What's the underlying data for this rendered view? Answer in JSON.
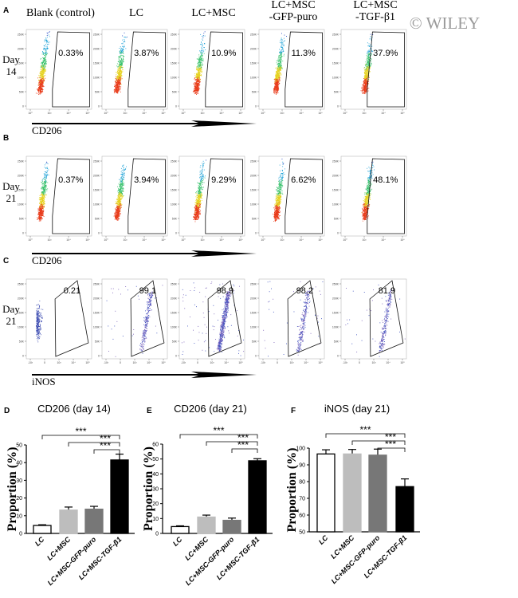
{
  "watermark": "© WILEY",
  "column_headers": [
    [
      "Blank (control)"
    ],
    [
      "LC"
    ],
    [
      "LC+MSC"
    ],
    [
      "LC+MSC",
      "-GFP-puro"
    ],
    [
      "LC+MSC",
      "-TGF-β1"
    ]
  ],
  "flow_rows": [
    {
      "letter": "A",
      "day": [
        "Day",
        "14"
      ],
      "marker": "CD206",
      "gate": "rect",
      "values": [
        "0.33%",
        "3.87%",
        "10.9%",
        "11.3%",
        "37.9%"
      ],
      "y_ticks": [
        "0",
        "50K",
        "100K",
        "150K",
        "200K",
        "250K"
      ],
      "x_ticks": [
        "10⁰",
        "10²",
        "10⁴",
        "10⁶"
      ]
    },
    {
      "letter": "B",
      "day": [
        "Day",
        "21"
      ],
      "marker": "CD206",
      "gate": "rect",
      "values": [
        "0.37%",
        "3.94%",
        "9.29%",
        "6.62%",
        "48.1%"
      ],
      "y_ticks": [
        "0",
        "50K",
        "100K",
        "150K",
        "200K",
        "250K"
      ],
      "x_ticks": [
        "10⁰",
        "10²",
        "10⁴",
        "10⁶"
      ]
    },
    {
      "letter": "C",
      "day": [
        "Day",
        "21"
      ],
      "marker": "iNOS",
      "gate": "poly",
      "values": [
        "0.21",
        "99.1",
        "98.9",
        "98.2",
        "81.9"
      ],
      "y_ticks": [
        "0",
        "50K",
        "100K",
        "150K",
        "200K",
        "250K"
      ],
      "x_ticks": [
        "-10³",
        "0",
        "10³",
        "10⁴",
        "10⁵"
      ]
    }
  ],
  "chart_data": [
    {
      "letter": "D",
      "type": "bar",
      "title": "CD206 (day 14)",
      "ylabel": "Proportion (%)",
      "ylim": [
        0,
        50
      ],
      "yticks": [
        0,
        10,
        20,
        30,
        40,
        50
      ],
      "categories": [
        "LC",
        "LC+MSC",
        "LC+MSC-GFP-puro",
        "LC+MSC-TGF-β1"
      ],
      "values": [
        4.5,
        13.2,
        13.7,
        41.5
      ],
      "errors": [
        0.4,
        1.7,
        1.6,
        3.3
      ],
      "colors": [
        "#ffffff",
        "#bdbdbd",
        "#777777",
        "#000000"
      ],
      "significance": [
        {
          "from": 0,
          "to": 3,
          "label": "***"
        },
        {
          "from": 1,
          "to": 3,
          "label": "***"
        },
        {
          "from": 2,
          "to": 3,
          "label": "***"
        }
      ]
    },
    {
      "letter": "E",
      "type": "bar",
      "title": "CD206 (day 21)",
      "ylabel": "Proportion (%)",
      "ylim": [
        0,
        60
      ],
      "yticks": [
        0,
        10,
        20,
        30,
        40,
        50,
        60
      ],
      "categories": [
        "LC",
        "LC+MSC",
        "LC+MSC-GFP-puro",
        "LC+MSC-TGF-β1"
      ],
      "values": [
        4.6,
        11.0,
        8.8,
        48.8
      ],
      "errors": [
        0.5,
        1.3,
        1.5,
        1.4
      ],
      "colors": [
        "#ffffff",
        "#bdbdbd",
        "#777777",
        "#000000"
      ],
      "significance": [
        {
          "from": 0,
          "to": 3,
          "label": "***"
        },
        {
          "from": 1,
          "to": 3,
          "label": "***"
        },
        {
          "from": 2,
          "to": 3,
          "label": "***"
        }
      ]
    },
    {
      "letter": "F",
      "type": "bar",
      "title": "iNOS (day 21)",
      "ylabel": "Proportion (%)",
      "ylim": [
        50,
        100
      ],
      "yticks": [
        50,
        60,
        70,
        80,
        90,
        100
      ],
      "categories": [
        "LC",
        "LC+MSC",
        "LC+MSC-GFP-puro",
        "LC+MSC-TGF-β1"
      ],
      "values": [
        96.5,
        96.5,
        95.8,
        77.0
      ],
      "errors": [
        2.5,
        2.7,
        3.6,
        4.6
      ],
      "colors": [
        "#ffffff",
        "#bdbdbd",
        "#777777",
        "#000000"
      ],
      "significance": [
        {
          "from": 0,
          "to": 3,
          "label": "***"
        },
        {
          "from": 1,
          "to": 3,
          "label": "***"
        },
        {
          "from": 2,
          "to": 3,
          "label": "***"
        }
      ]
    }
  ]
}
